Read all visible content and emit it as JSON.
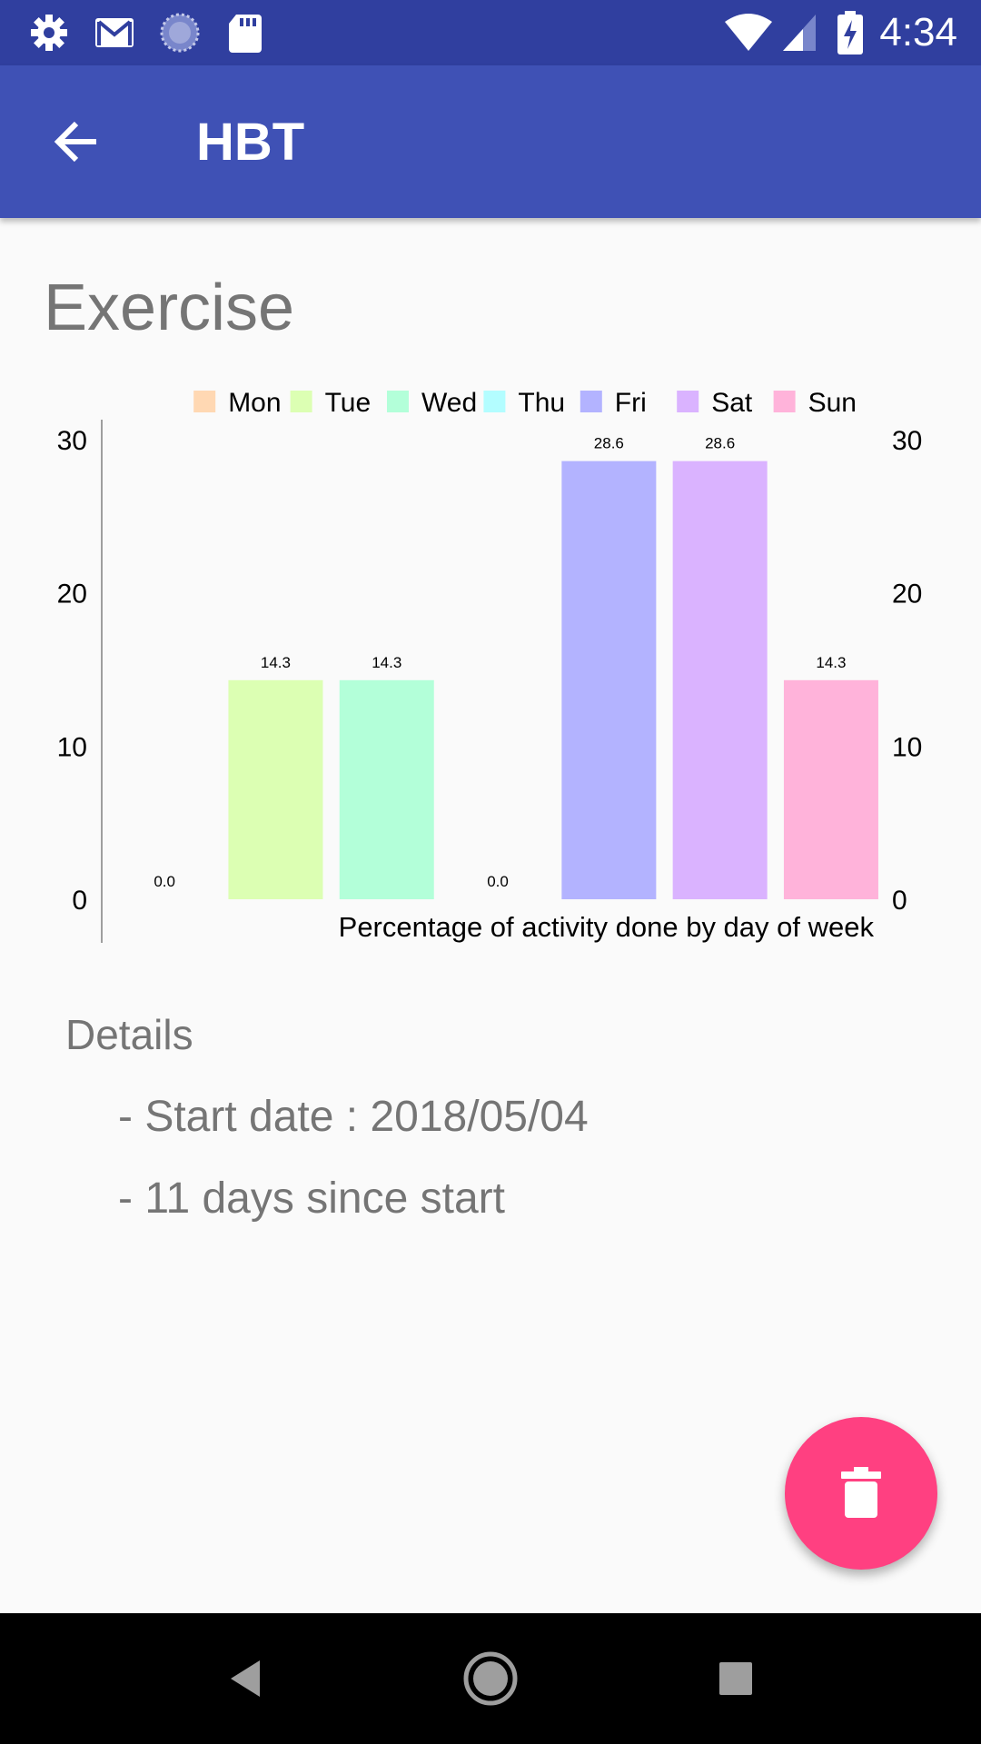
{
  "status_bar": {
    "time": "4:34",
    "left_icons": [
      "settings-icon",
      "gmail-icon",
      "sync-icon",
      "sd-card-icon"
    ],
    "right_icons": [
      "wifi-icon",
      "cell-signal-icon",
      "battery-charging-icon"
    ]
  },
  "app_bar": {
    "title": "HBT",
    "back_icon": "arrow-back-icon",
    "background": "#3f51b5"
  },
  "habit": {
    "name": "Exercise"
  },
  "chart_data": {
    "type": "bar",
    "categories": [
      "Mon",
      "Tue",
      "Wed",
      "Thu",
      "Fri",
      "Sat",
      "Sun"
    ],
    "values": [
      0.0,
      14.3,
      14.3,
      0.0,
      28.6,
      28.6,
      14.3
    ],
    "value_labels": [
      "0.0",
      "14.3",
      "14.3",
      "0.0",
      "28.6",
      "28.6",
      "14.3"
    ],
    "colors": [
      "#ffd8b3",
      "#dcffb3",
      "#b3ffd9",
      "#b3fdff",
      "#b3b3ff",
      "#dab3ff",
      "#ffb3da"
    ],
    "legend": [
      "Mon",
      "Tue",
      "Wed",
      "Thu",
      "Fri",
      "Sat",
      "Sun"
    ],
    "legend_position": "top-right",
    "ylim": [
      0,
      30
    ],
    "yticks": [
      "0",
      "10",
      "20",
      "30"
    ],
    "description": "Percentage of activity done by day of week",
    "grid": false
  },
  "details": {
    "title": "Details",
    "start_date": "- Start date : 2018/05/04",
    "days_since": "- 11 days since start"
  },
  "fab": {
    "icon": "delete-icon",
    "color": "#ff4081"
  },
  "nav_bar": {
    "buttons": [
      "nav-back-icon",
      "nav-home-icon",
      "nav-recents-icon"
    ]
  }
}
